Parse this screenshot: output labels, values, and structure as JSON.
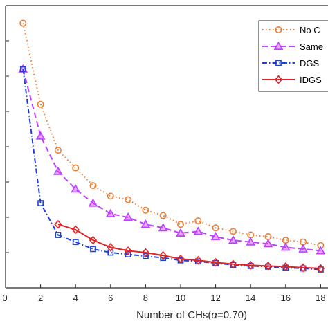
{
  "chart_data": {
    "type": "line",
    "title": "",
    "xlabel_prefix": "Number of CHs(",
    "xlabel_alpha": "α",
    "xlabel_suffix": "=0.70)",
    "ylabel": "",
    "xlim": [
      0,
      18
    ],
    "ylim": [
      0,
      8
    ],
    "xticks": [
      "0",
      "2",
      "4",
      "6",
      "8",
      "10",
      "12",
      "14",
      "16",
      "18"
    ],
    "grid": false,
    "legend_position": "top-right",
    "series": [
      {
        "name": "No C",
        "color": "#ed7d31",
        "marker": "circle",
        "dash": "dotted",
        "x": [
          1,
          2,
          3,
          4,
          5,
          6,
          7,
          8,
          9,
          10,
          11,
          12,
          13,
          14,
          15,
          16,
          17,
          18
        ],
        "y": [
          7.5,
          5.2,
          3.9,
          3.4,
          2.9,
          2.6,
          2.5,
          2.2,
          2.05,
          1.8,
          1.9,
          1.7,
          1.6,
          1.5,
          1.45,
          1.35,
          1.3,
          1.2
        ]
      },
      {
        "name": "Same",
        "color": "#bf40ff",
        "marker": "triangle",
        "dash": "dashed",
        "x": [
          1,
          2,
          3,
          4,
          5,
          6,
          7,
          8,
          9,
          10,
          11,
          12,
          13,
          14,
          15,
          16,
          17,
          18
        ],
        "y": [
          6.2,
          4.3,
          3.3,
          2.8,
          2.4,
          2.1,
          2.0,
          1.8,
          1.7,
          1.55,
          1.6,
          1.45,
          1.35,
          1.3,
          1.25,
          1.15,
          1.1,
          1.05
        ]
      },
      {
        "name": "DGS",
        "color": "#1f3fd6",
        "marker": "square",
        "dash": "dashdot",
        "x": [
          1,
          2,
          3,
          4,
          5,
          6,
          7,
          8,
          9,
          10,
          11,
          12,
          13,
          14,
          15,
          16,
          17,
          18
        ],
        "y": [
          6.2,
          2.4,
          1.5,
          1.3,
          1.1,
          1.0,
          0.95,
          0.9,
          0.85,
          0.78,
          0.75,
          0.7,
          0.65,
          0.62,
          0.6,
          0.57,
          0.55,
          0.52
        ]
      },
      {
        "name": "IDGS",
        "color": "#e32424",
        "marker": "diamond",
        "dash": "solid",
        "x": [
          3,
          4,
          5,
          6,
          7,
          8,
          9,
          10,
          11,
          12,
          13,
          14,
          15,
          16,
          17,
          18
        ],
        "y": [
          1.8,
          1.65,
          1.35,
          1.15,
          1.05,
          1.0,
          0.92,
          0.82,
          0.78,
          0.72,
          0.67,
          0.64,
          0.62,
          0.6,
          0.57,
          0.55
        ]
      }
    ]
  }
}
